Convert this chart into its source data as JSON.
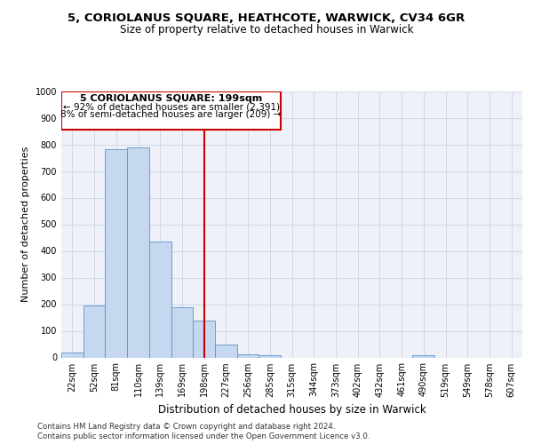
{
  "title": "5, CORIOLANUS SQUARE, HEATHCOTE, WARWICK, CV34 6GR",
  "subtitle": "Size of property relative to detached houses in Warwick",
  "xlabel": "Distribution of detached houses by size in Warwick",
  "ylabel": "Number of detached properties",
  "categories": [
    "22sqm",
    "52sqm",
    "81sqm",
    "110sqm",
    "139sqm",
    "169sqm",
    "198sqm",
    "227sqm",
    "256sqm",
    "285sqm",
    "315sqm",
    "344sqm",
    "373sqm",
    "402sqm",
    "432sqm",
    "461sqm",
    "490sqm",
    "519sqm",
    "549sqm",
    "578sqm",
    "607sqm"
  ],
  "values": [
    20,
    195,
    783,
    787,
    435,
    190,
    140,
    48,
    12,
    10,
    0,
    0,
    0,
    0,
    0,
    0,
    10,
    0,
    0,
    0,
    0
  ],
  "bar_color": "#c5d8f0",
  "bar_edge_color": "#6090c8",
  "grid_color": "#d0d8e8",
  "vline_index": 6,
  "annotation_text_line1": "5 CORIOLANUS SQUARE: 199sqm",
  "annotation_text_line2": "← 92% of detached houses are smaller (2,391)",
  "annotation_text_line3": "8% of semi-detached houses are larger (209) →",
  "annotation_box_color": "#cc0000",
  "vline_color": "#cc0000",
  "footer_line1": "Contains HM Land Registry data © Crown copyright and database right 2024.",
  "footer_line2": "Contains public sector information licensed under the Open Government Licence v3.0.",
  "ylim": [
    0,
    1000
  ],
  "yticks": [
    0,
    100,
    200,
    300,
    400,
    500,
    600,
    700,
    800,
    900,
    1000
  ],
  "background_color": "#eef2f8",
  "fig_background": "#ffffff",
  "title_fontsize": 9.5,
  "subtitle_fontsize": 8.5,
  "tick_fontsize": 7,
  "ylabel_fontsize": 8,
  "xlabel_fontsize": 8.5,
  "footer_fontsize": 6.2
}
